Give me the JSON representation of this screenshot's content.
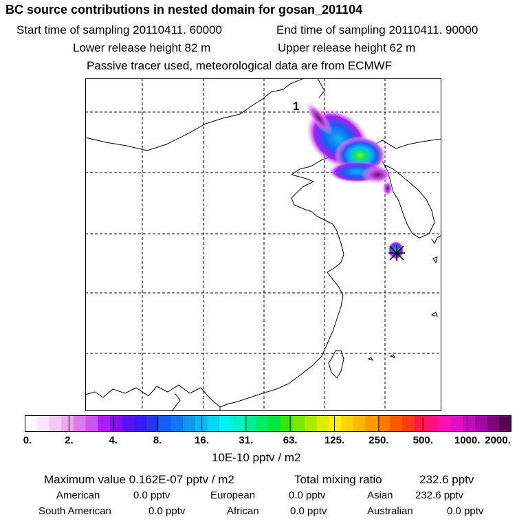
{
  "header": {
    "title": "BC  source contributions in nested domain for gosan_201104",
    "start_label": "Start time of sampling 20110411. 60000",
    "end_label": "End time of sampling 20110411. 90000",
    "lower_label": "Lower release height   82 m",
    "upper_label": "Upper release height   62 m",
    "note": "Passive tracer used, meteorological data are from ECMWF"
  },
  "map": {
    "marker_label": "1"
  },
  "chart_data": {
    "type": "heatmap",
    "title": "BC  source contributions in nested domain for gosan_201104",
    "colorbar": {
      "unit_label": "10E-10 pptv / m2",
      "tick_labels": [
        "0.",
        "2.",
        "4.",
        "8.",
        "16.",
        "31.",
        "63.",
        "125.",
        "250.",
        "500.",
        "1000.",
        "2000."
      ],
      "colors": [
        "#ffffff",
        "#fbe6fb",
        "#f6c8f6",
        "#eeaaf0",
        "#d97de8",
        "#c558ee",
        "#a81ef0",
        "#8512ee",
        "#5a14f2",
        "#3a1cf2",
        "#2436ee",
        "#1a5cf2",
        "#1476f2",
        "#0e98f2",
        "#0ab8f2",
        "#06d6f2",
        "#00f4f0",
        "#00f2c6",
        "#00ee98",
        "#00ea6c",
        "#00e640",
        "#3ae40c",
        "#78e800",
        "#a8ec00",
        "#d8f000",
        "#fff000",
        "#ffd400",
        "#ffb800",
        "#ff9a00",
        "#ff7a00",
        "#ff5a00",
        "#ff3a10",
        "#ff1a46",
        "#ff1080",
        "#ff10b0",
        "#e40ec8",
        "#c40cb8",
        "#a00aa0",
        "#7a0878",
        "#520650"
      ]
    },
    "max_value": "0.162E-07",
    "total_mixing_ratio": "232.6"
  },
  "stats": {
    "max_label": "Maximum value  0.162E-07 pptv / m2",
    "total_label": "Total mixing ratio",
    "total_value": "232.6 pptv",
    "regions": [
      {
        "name": "American",
        "value": "0.0 pptv"
      },
      {
        "name": "European",
        "value": "0.0 pptv"
      },
      {
        "name": "Asian",
        "value": "232.6 pptv"
      },
      {
        "name": "South American",
        "value": "0.0 pptv"
      },
      {
        "name": "African",
        "value": "0.0 pptv"
      },
      {
        "name": "Australian",
        "value": "0.0 pptv"
      }
    ]
  }
}
